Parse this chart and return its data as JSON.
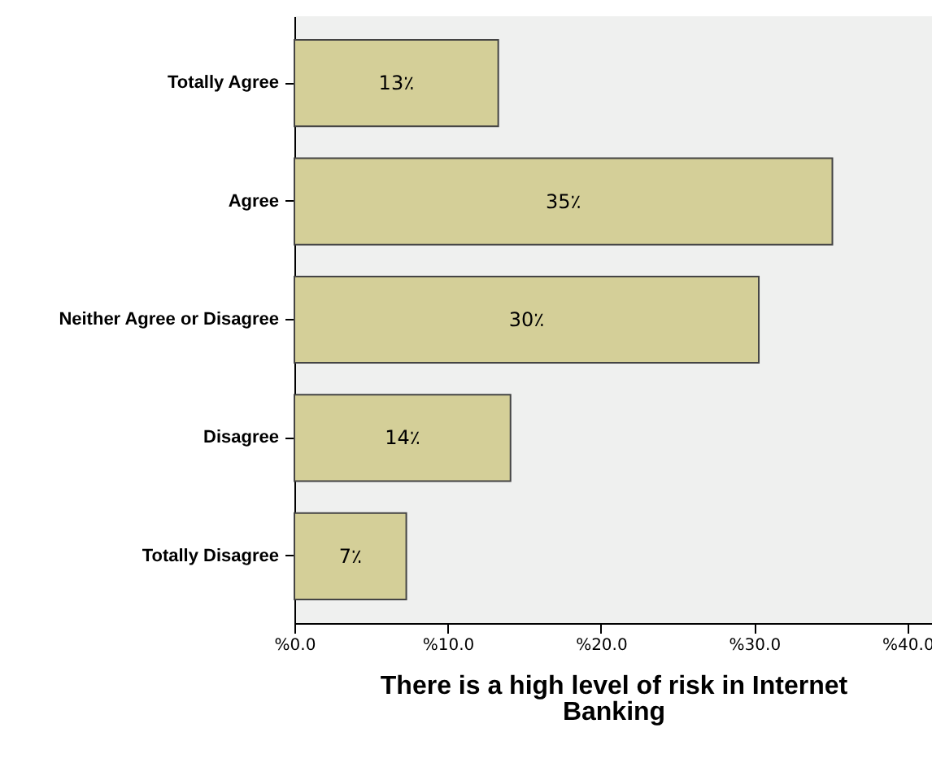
{
  "chart_data": {
    "type": "bar",
    "orientation": "horizontal",
    "xlabel": "There is a high level of risk in Internet Banking",
    "categories": [
      "Totally Agree",
      "Agree",
      "Neither Agree or Disagree",
      "Disagree",
      "Totally Disagree"
    ],
    "values": [
      13.3,
      35.1,
      30.3,
      14.1,
      7.3
    ],
    "value_labels": [
      "13٪",
      "35٪",
      "30٪",
      "14٪",
      "7٪"
    ],
    "color": "#d4cf98",
    "xlim": [
      0,
      41.6
    ],
    "xticks": [
      {
        "value": 0,
        "label": "%0.0"
      },
      {
        "value": 10,
        "label": "%10.0"
      },
      {
        "value": 20,
        "label": "%20.0"
      },
      {
        "value": 30,
        "label": "%30.0"
      },
      {
        "value": 40,
        "label": "%40.0"
      }
    ],
    "grid": false
  }
}
